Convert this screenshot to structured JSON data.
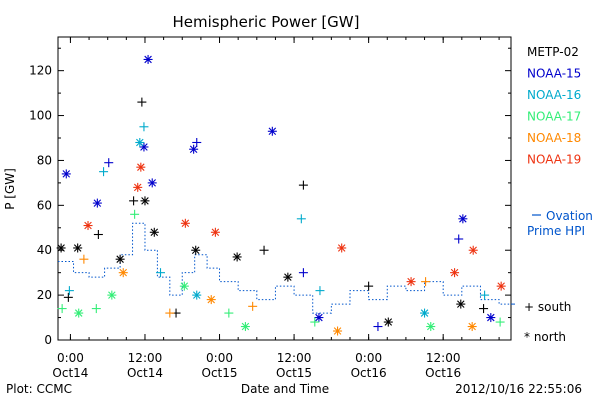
{
  "footer": {
    "plot_credit": "Plot: CCMC",
    "timestamp": "2012/10/16 22:55:06"
  },
  "chart_data": {
    "type": "scatter",
    "title": "Hemispheric Power [GW]",
    "xlabel": "Date and Time",
    "ylabel": "P [GW]",
    "ylim": [
      0,
      135
    ],
    "y_ticks": [
      0,
      20,
      40,
      60,
      80,
      100,
      120
    ],
    "xlim": [
      "2012-10-13T22:00",
      "2012-10-16T22:55"
    ],
    "x_ticks": [
      {
        "time": "2012-10-14T00:00",
        "label_top": "0:00",
        "label_bottom": "Oct14"
      },
      {
        "time": "2012-10-14T12:00",
        "label_top": "12:00",
        "label_bottom": "Oct14"
      },
      {
        "time": "2012-10-15T00:00",
        "label_top": "0:00",
        "label_bottom": "Oct15"
      },
      {
        "time": "2012-10-15T12:00",
        "label_top": "12:00",
        "label_bottom": "Oct15"
      },
      {
        "time": "2012-10-16T00:00",
        "label_top": "0:00",
        "label_bottom": "Oct16"
      },
      {
        "time": "2012-10-16T12:00",
        "label_top": "12:00",
        "label_bottom": "Oct16"
      }
    ],
    "legend_position": "right",
    "marker_legend": [
      {
        "symbol": "+",
        "label": "south"
      },
      {
        "symbol": "*",
        "label": "north"
      }
    ],
    "series": [
      {
        "name": "METP-02",
        "color": "#000000",
        "points": [
          {
            "t": "2012-10-13T22:30",
            "y": 41,
            "hemisphere": "north"
          },
          {
            "t": "2012-10-13T23:40",
            "y": 19,
            "hemisphere": "south"
          },
          {
            "t": "2012-10-14T01:10",
            "y": 41,
            "hemisphere": "north"
          },
          {
            "t": "2012-10-14T04:30",
            "y": 47,
            "hemisphere": "south"
          },
          {
            "t": "2012-10-14T08:00",
            "y": 36,
            "hemisphere": "north"
          },
          {
            "t": "2012-10-14T10:10",
            "y": 62,
            "hemisphere": "south"
          },
          {
            "t": "2012-10-14T11:30",
            "y": 106,
            "hemisphere": "south"
          },
          {
            "t": "2012-10-14T12:00",
            "y": 62,
            "hemisphere": "north"
          },
          {
            "t": "2012-10-14T13:30",
            "y": 48,
            "hemisphere": "north"
          },
          {
            "t": "2012-10-14T17:00",
            "y": 12,
            "hemisphere": "south"
          },
          {
            "t": "2012-10-14T20:10",
            "y": 40,
            "hemisphere": "north"
          },
          {
            "t": "2012-10-15T02:50",
            "y": 37,
            "hemisphere": "north"
          },
          {
            "t": "2012-10-15T07:10",
            "y": 40,
            "hemisphere": "south"
          },
          {
            "t": "2012-10-15T11:00",
            "y": 28,
            "hemisphere": "north"
          },
          {
            "t": "2012-10-15T13:30",
            "y": 69,
            "hemisphere": "south"
          },
          {
            "t": "2012-10-16T00:00",
            "y": 24,
            "hemisphere": "south"
          },
          {
            "t": "2012-10-16T03:10",
            "y": 8,
            "hemisphere": "north"
          },
          {
            "t": "2012-10-16T14:50",
            "y": 16,
            "hemisphere": "north"
          },
          {
            "t": "2012-10-16T18:30",
            "y": 14,
            "hemisphere": "south"
          }
        ]
      },
      {
        "name": "NOAA-15",
        "color": "#0000cc",
        "points": [
          {
            "t": "2012-10-13T23:20",
            "y": 74,
            "hemisphere": "north"
          },
          {
            "t": "2012-10-14T04:20",
            "y": 61,
            "hemisphere": "north"
          },
          {
            "t": "2012-10-14T06:10",
            "y": 79,
            "hemisphere": "south"
          },
          {
            "t": "2012-10-14T11:50",
            "y": 86,
            "hemisphere": "north"
          },
          {
            "t": "2012-10-14T12:30",
            "y": 125,
            "hemisphere": "north"
          },
          {
            "t": "2012-10-14T13:10",
            "y": 70,
            "hemisphere": "north"
          },
          {
            "t": "2012-10-14T19:50",
            "y": 85,
            "hemisphere": "north"
          },
          {
            "t": "2012-10-14T20:20",
            "y": 88,
            "hemisphere": "south"
          },
          {
            "t": "2012-10-15T08:30",
            "y": 93,
            "hemisphere": "north"
          },
          {
            "t": "2012-10-15T13:30",
            "y": 30,
            "hemisphere": "south"
          },
          {
            "t": "2012-10-15T16:00",
            "y": 10,
            "hemisphere": "north"
          },
          {
            "t": "2012-10-16T01:30",
            "y": 6,
            "hemisphere": "south"
          },
          {
            "t": "2012-10-16T14:30",
            "y": 45,
            "hemisphere": "south"
          },
          {
            "t": "2012-10-16T15:10",
            "y": 54,
            "hemisphere": "north"
          },
          {
            "t": "2012-10-16T19:40",
            "y": 10,
            "hemisphere": "north"
          }
        ]
      },
      {
        "name": "NOAA-16",
        "color": "#00aacc",
        "points": [
          {
            "t": "2012-10-13T23:50",
            "y": 22,
            "hemisphere": "south"
          },
          {
            "t": "2012-10-14T05:20",
            "y": 75,
            "hemisphere": "south"
          },
          {
            "t": "2012-10-14T11:10",
            "y": 88,
            "hemisphere": "north"
          },
          {
            "t": "2012-10-14T11:50",
            "y": 95,
            "hemisphere": "south"
          },
          {
            "t": "2012-10-14T14:30",
            "y": 30,
            "hemisphere": "south"
          },
          {
            "t": "2012-10-14T20:20",
            "y": 20,
            "hemisphere": "north"
          },
          {
            "t": "2012-10-15T13:10",
            "y": 54,
            "hemisphere": "south"
          },
          {
            "t": "2012-10-15T16:10",
            "y": 22,
            "hemisphere": "south"
          },
          {
            "t": "2012-10-16T09:00",
            "y": 12,
            "hemisphere": "north"
          },
          {
            "t": "2012-10-16T18:40",
            "y": 20,
            "hemisphere": "south"
          }
        ]
      },
      {
        "name": "NOAA-17",
        "color": "#33ee77",
        "points": [
          {
            "t": "2012-10-13T22:40",
            "y": 14,
            "hemisphere": "south"
          },
          {
            "t": "2012-10-14T01:20",
            "y": 12,
            "hemisphere": "north"
          },
          {
            "t": "2012-10-14T04:10",
            "y": 14,
            "hemisphere": "south"
          },
          {
            "t": "2012-10-14T06:40",
            "y": 20,
            "hemisphere": "north"
          },
          {
            "t": "2012-10-14T10:20",
            "y": 56,
            "hemisphere": "south"
          },
          {
            "t": "2012-10-14T18:20",
            "y": 24,
            "hemisphere": "north"
          },
          {
            "t": "2012-10-15T01:30",
            "y": 12,
            "hemisphere": "south"
          },
          {
            "t": "2012-10-15T04:10",
            "y": 6,
            "hemisphere": "north"
          },
          {
            "t": "2012-10-15T15:20",
            "y": 8,
            "hemisphere": "south"
          },
          {
            "t": "2012-10-16T10:00",
            "y": 6,
            "hemisphere": "north"
          },
          {
            "t": "2012-10-16T21:10",
            "y": 8,
            "hemisphere": "south"
          }
        ]
      },
      {
        "name": "NOAA-18",
        "color": "#ff8800",
        "points": [
          {
            "t": "2012-10-14T02:10",
            "y": 36,
            "hemisphere": "south"
          },
          {
            "t": "2012-10-14T08:30",
            "y": 30,
            "hemisphere": "north"
          },
          {
            "t": "2012-10-14T16:00",
            "y": 12,
            "hemisphere": "south"
          },
          {
            "t": "2012-10-14T22:40",
            "y": 18,
            "hemisphere": "north"
          },
          {
            "t": "2012-10-15T05:20",
            "y": 15,
            "hemisphere": "south"
          },
          {
            "t": "2012-10-15T19:00",
            "y": 4,
            "hemisphere": "north"
          },
          {
            "t": "2012-10-16T09:10",
            "y": 26,
            "hemisphere": "south"
          },
          {
            "t": "2012-10-16T16:40",
            "y": 6,
            "hemisphere": "north"
          }
        ]
      },
      {
        "name": "NOAA-19",
        "color": "#ee3311",
        "points": [
          {
            "t": "2012-10-14T02:50",
            "y": 51,
            "hemisphere": "north"
          },
          {
            "t": "2012-10-14T10:50",
            "y": 68,
            "hemisphere": "north"
          },
          {
            "t": "2012-10-14T11:20",
            "y": 77,
            "hemisphere": "north"
          },
          {
            "t": "2012-10-14T18:30",
            "y": 52,
            "hemisphere": "north"
          },
          {
            "t": "2012-10-14T23:20",
            "y": 48,
            "hemisphere": "north"
          },
          {
            "t": "2012-10-15T19:40",
            "y": 41,
            "hemisphere": "north"
          },
          {
            "t": "2012-10-16T06:50",
            "y": 26,
            "hemisphere": "north"
          },
          {
            "t": "2012-10-16T13:50",
            "y": 30,
            "hemisphere": "north"
          },
          {
            "t": "2012-10-16T16:50",
            "y": 40,
            "hemisphere": "north"
          },
          {
            "t": "2012-10-16T21:20",
            "y": 24,
            "hemisphere": "north"
          }
        ]
      }
    ],
    "ovation": {
      "label_line1": "Ovation",
      "label_line2": "Prime HPI",
      "color": "#0055cc",
      "steps": [
        {
          "t": "2012-10-13T22:00",
          "y": 35
        },
        {
          "t": "2012-10-14T00:30",
          "y": 30
        },
        {
          "t": "2012-10-14T03:00",
          "y": 28
        },
        {
          "t": "2012-10-14T05:30",
          "y": 32
        },
        {
          "t": "2012-10-14T08:00",
          "y": 38
        },
        {
          "t": "2012-10-14T10:00",
          "y": 52
        },
        {
          "t": "2012-10-14T12:00",
          "y": 40
        },
        {
          "t": "2012-10-14T14:00",
          "y": 28
        },
        {
          "t": "2012-10-14T16:00",
          "y": 20
        },
        {
          "t": "2012-10-14T18:00",
          "y": 30
        },
        {
          "t": "2012-10-14T20:00",
          "y": 38
        },
        {
          "t": "2012-10-14T22:00",
          "y": 32
        },
        {
          "t": "2012-10-15T00:00",
          "y": 26
        },
        {
          "t": "2012-10-15T03:00",
          "y": 22
        },
        {
          "t": "2012-10-15T06:00",
          "y": 18
        },
        {
          "t": "2012-10-15T09:00",
          "y": 24
        },
        {
          "t": "2012-10-15T12:00",
          "y": 20
        },
        {
          "t": "2012-10-15T15:00",
          "y": 12
        },
        {
          "t": "2012-10-15T18:00",
          "y": 16
        },
        {
          "t": "2012-10-15T21:00",
          "y": 22
        },
        {
          "t": "2012-10-16T00:00",
          "y": 18
        },
        {
          "t": "2012-10-16T03:00",
          "y": 24
        },
        {
          "t": "2012-10-16T06:00",
          "y": 22
        },
        {
          "t": "2012-10-16T09:00",
          "y": 26
        },
        {
          "t": "2012-10-16T12:00",
          "y": 20
        },
        {
          "t": "2012-10-16T15:00",
          "y": 24
        },
        {
          "t": "2012-10-16T18:00",
          "y": 18
        },
        {
          "t": "2012-10-16T21:00",
          "y": 16
        },
        {
          "t": "2012-10-16T22:55",
          "y": 16
        }
      ]
    }
  }
}
